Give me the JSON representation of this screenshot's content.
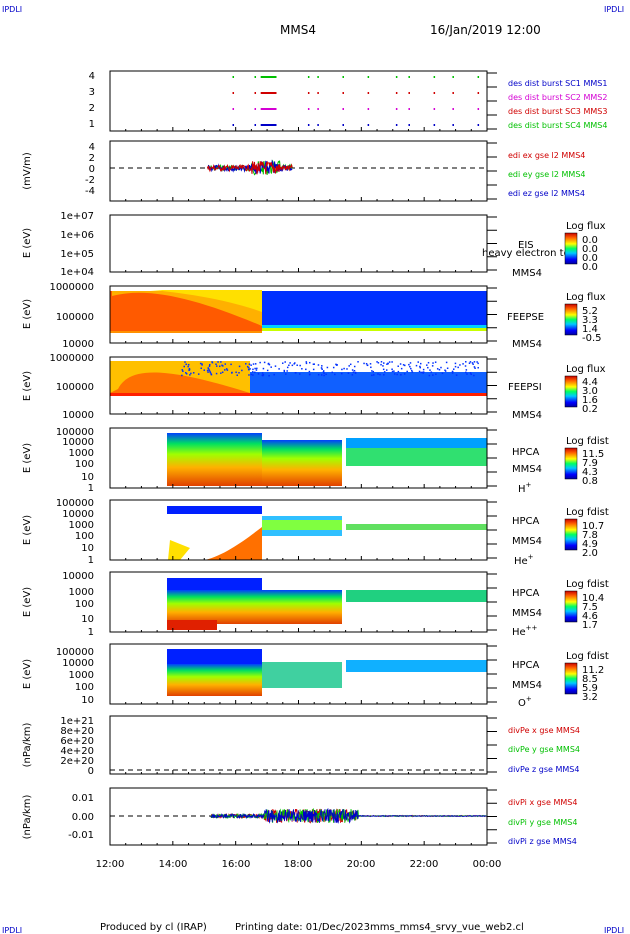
{
  "header": {
    "corner_left_top": "IPDLI",
    "corner_right_top": "IPDLI",
    "corner_left_bottom": "IPDLI",
    "corner_right_bottom": "IPDLI",
    "spacecraft": "MMS4",
    "datetime": "16/Jan/2019 12:00"
  },
  "footer": {
    "produced_by": "Produced by cl (IRAP)",
    "printing_date": "Printing date: 01/Dec/2023",
    "script_name": "mms_mms4_srvy_vue_web2.cl"
  },
  "colors": {
    "sc1": "#0000c8",
    "sc2": "#d400d4",
    "sc3": "#d00000",
    "sc4": "#00c000"
  },
  "chart_data": [
    {
      "type": "line",
      "panel": "des-dist-burst",
      "ylim": [
        0.5,
        4.5
      ],
      "yticks": [
        "4",
        "3",
        "2",
        "1"
      ],
      "ylabel": "",
      "series": [
        {
          "name": "des dist burst SC1 MMS1",
          "color": "#0000c8"
        },
        {
          "name": "des dist burst SC2 MMS2",
          "color": "#d400d4"
        },
        {
          "name": "des dist burst SC3 MMS3",
          "color": "#d00000"
        },
        {
          "name": "des dist burst SC4 MMS4",
          "color": "#00c000"
        }
      ]
    },
    {
      "type": "line",
      "panel": "edi-e",
      "ylabel": "(mV/m)",
      "ylim": [
        -5,
        5
      ],
      "yticks": [
        "4",
        "2",
        "0",
        "-2",
        "-4"
      ],
      "series": [
        {
          "name": "edi ex gse l2 MMS4",
          "color": "#d00000"
        },
        {
          "name": "edi ey gse l2 MMS4",
          "color": "#00c000"
        },
        {
          "name": "edi ez gse l2 MMS4",
          "color": "#0000c8"
        }
      ]
    },
    {
      "type": "heatmap",
      "panel": "eis",
      "ylabel": "E (eV)",
      "yticks": [
        "1e+07",
        "1e+06",
        "1e+05",
        "1e+04"
      ],
      "instrument": "EIS",
      "subtitle": "heavy electron tof",
      "spacecraft": "MMS4",
      "colorbar_title": "Log flux",
      "colorbar_ticks": [
        "0.0",
        "0.0",
        "0.0",
        "0.0"
      ]
    },
    {
      "type": "heatmap",
      "panel": "feeps-e",
      "ylabel": "E (eV)",
      "yticks": [
        "1000000",
        "100000",
        "10000"
      ],
      "instrument": "FEEPSE",
      "spacecraft": "MMS4",
      "colorbar_title": "Log flux",
      "colorbar_ticks": [
        "5.2",
        "3.3",
        "1.4",
        "-0.5"
      ]
    },
    {
      "type": "heatmap",
      "panel": "feeps-i",
      "ylabel": "E (eV)",
      "yticks": [
        "1000000",
        "100000",
        "10000"
      ],
      "instrument": "FEEPSI",
      "spacecraft": "MMS4",
      "colorbar_title": "Log flux",
      "colorbar_ticks": [
        "4.4",
        "3.0",
        "1.6",
        "0.2"
      ]
    },
    {
      "type": "heatmap",
      "panel": "hpca-h",
      "ylabel": "E (eV)",
      "yticks": [
        "100000",
        "10000",
        "1000",
        "100",
        "10",
        "1"
      ],
      "instrument": "HPCA",
      "spacecraft": "MMS4",
      "species": "H",
      "species_charge": "+",
      "colorbar_title": "Log fdist",
      "colorbar_ticks": [
        "11.5",
        "7.9",
        "4.3",
        "0.8"
      ]
    },
    {
      "type": "heatmap",
      "panel": "hpca-he1",
      "ylabel": "E (eV)",
      "yticks": [
        "100000",
        "10000",
        "1000",
        "100",
        "10",
        "1"
      ],
      "instrument": "HPCA",
      "spacecraft": "MMS4",
      "species": "He",
      "species_charge": "+",
      "colorbar_title": "Log fdist",
      "colorbar_ticks": [
        "10.7",
        "7.8",
        "4.9",
        "2.0"
      ]
    },
    {
      "type": "heatmap",
      "panel": "hpca-he2",
      "ylabel": "E (eV)",
      "yticks": [
        "10000",
        "1000",
        "100",
        "10",
        "1"
      ],
      "instrument": "HPCA",
      "spacecraft": "MMS4",
      "species": "He",
      "species_charge": "++",
      "colorbar_title": "Log fdist",
      "colorbar_ticks": [
        "10.4",
        "7.5",
        "4.6",
        "1.7"
      ]
    },
    {
      "type": "heatmap",
      "panel": "hpca-o",
      "ylabel": "E (eV)",
      "yticks": [
        "100000",
        "10000",
        "1000",
        "100",
        "10"
      ],
      "instrument": "HPCA",
      "spacecraft": "MMS4",
      "species": "O",
      "species_charge": "+",
      "colorbar_title": "Log fdist",
      "colorbar_ticks": [
        "11.2",
        "8.5",
        "5.9",
        "3.2"
      ]
    },
    {
      "type": "line",
      "panel": "divpe",
      "ylabel": "(nPa/km)",
      "yticks": [
        "1e+21",
        "8e+20",
        "6e+20",
        "4e+20",
        "2e+20",
        "0"
      ],
      "series": [
        {
          "name": "divPe x gse MMS4",
          "color": "#d00000"
        },
        {
          "name": "divPe y gse MMS4",
          "color": "#00c000"
        },
        {
          "name": "divPe z gse MMS4",
          "color": "#0000c8"
        }
      ]
    },
    {
      "type": "line",
      "panel": "divpi",
      "ylabel": "(nPa/km)",
      "ylim": [
        -0.015,
        0.015
      ],
      "yticks": [
        "0.01",
        "0.00",
        "-0.01"
      ],
      "series": [
        {
          "name": "divPi x gse MMS4",
          "color": "#d00000"
        },
        {
          "name": "divPi y gse MMS4",
          "color": "#00c000"
        },
        {
          "name": "divPi z gse MMS4",
          "color": "#0000c8"
        }
      ]
    }
  ],
  "time_axis": {
    "ticks": [
      "12:00",
      "14:00",
      "16:00",
      "18:00",
      "20:00",
      "22:00",
      "00:00"
    ],
    "range_hours": [
      12,
      24
    ]
  }
}
